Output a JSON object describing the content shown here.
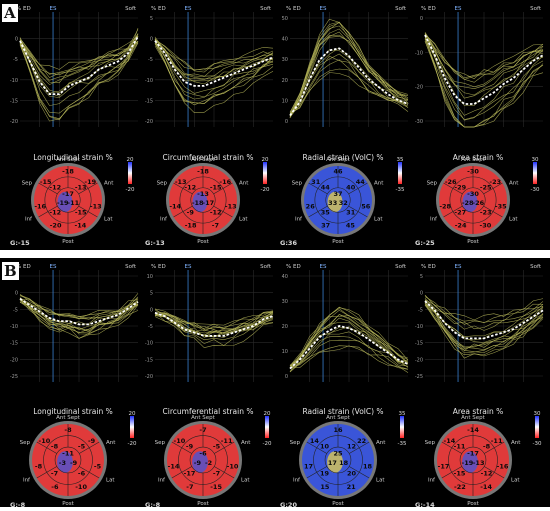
{
  "panels": [
    {
      "label": "A",
      "cols": [
        {
          "key": "long",
          "curve": {
            "ylabel": "% ED",
            "es": "ES",
            "soft": "Soft",
            "ticks": [
              "5",
              "0",
              "-5",
              "-10",
              "-15",
              "-20"
            ],
            "ylim": [
              -22,
              6
            ],
            "mean": [
              -1,
              -6,
              -11,
              -14,
              -14,
              -12,
              -11,
              -10,
              -8,
              -7,
              -6,
              -4,
              0
            ]
          },
          "bull": {
            "title": "Longitudinal strain %",
            "scale": [
              "20",
              "-20"
            ],
            "mode": "red",
            "global": "G:-15",
            "outer": [
              "-18",
              "-19",
              "-13",
              "-14",
              "-20",
              "-16",
              "-15"
            ],
            "mid": [
              "-13",
              "-15",
              "-12",
              "-12"
            ],
            "inner": [
              "-17",
              "-11",
              "-19"
            ]
          }
        },
        {
          "key": "circ",
          "curve": {
            "ylabel": "% ED",
            "es": "ES",
            "soft": "Soft",
            "ticks": [
              "5",
              "0",
              "-5",
              "-10",
              "-15",
              "-20"
            ],
            "ylim": [
              -22,
              6
            ],
            "mean": [
              -1,
              -4,
              -8,
              -11,
              -12,
              -12,
              -11,
              -10,
              -9,
              -8,
              -7,
              -6,
              -5
            ]
          },
          "bull": {
            "title": "Circumferential strain %",
            "scale": [
              "20",
              "-20"
            ],
            "mode": "red",
            "global": "G:-13",
            "outer": [
              "-18",
              "-16",
              "-13",
              "-7",
              "-18",
              "-14",
              "-13"
            ],
            "mid": [
              "-15",
              "-12",
              "-9",
              "-12"
            ],
            "inner": [
              "-13",
              "-17",
              "-18"
            ]
          }
        },
        {
          "key": "rad",
          "curve": {
            "ylabel": "% ED",
            "es": "ES",
            "soft": "Soft",
            "ticks": [
              "50",
              "40",
              "30",
              "20",
              "10",
              "0"
            ],
            "ylim": [
              -5,
              55
            ],
            "mean": [
              1,
              8,
              20,
              30,
              35,
              36,
              32,
              26,
              20,
              16,
              12,
              9,
              7
            ]
          },
          "bull": {
            "title": "Radial strain (VolC) %",
            "scale": [
              "35",
              "-35"
            ],
            "mode": "blue",
            "global": "G:36",
            "outer": [
              "46",
              "44",
              "56",
              "45",
              "37",
              "26",
              "31"
            ],
            "mid": [
              "40",
              "31",
              "35",
              "44"
            ],
            "inner": [
              "37",
              "32",
              "33"
            ]
          }
        },
        {
          "key": "area",
          "curve": {
            "ylabel": "% ED",
            "es": "ES",
            "soft": "Soft",
            "ticks": [
              "0",
              "-10",
              "-20",
              "-30"
            ],
            "ylim": [
              -35,
              5
            ],
            "mean": [
              -3,
              -10,
              -18,
              -24,
              -27,
              -27,
              -25,
              -23,
              -20,
              -18,
              -15,
              -12,
              -10
            ]
          },
          "bull": {
            "title": "Area strain %",
            "scale": [
              "30",
              "-30"
            ],
            "mode": "red",
            "global": "G:-25",
            "outer": [
              "-30",
              "-23",
              "-35",
              "-30",
              "-24",
              "-28",
              "-26"
            ],
            "mid": [
              "-25",
              "-23",
              "-27",
              "-29"
            ],
            "inner": [
              "-30",
              "-26",
              "-28"
            ]
          }
        }
      ]
    },
    {
      "label": "B",
      "cols": [
        {
          "key": "long",
          "curve": {
            "ylabel": "% ED",
            "es": "ES",
            "soft": "Soft",
            "ticks": [
              "5",
              "0",
              "-5",
              "-10",
              "-15",
              "-20",
              "-25"
            ],
            "ylim": [
              -27,
              8
            ],
            "mean": [
              -1,
              -3,
              -5,
              -7,
              -8,
              -8,
              -9,
              -9,
              -8,
              -7,
              -6,
              -4,
              -2
            ]
          },
          "bull": {
            "title": "Longitudinal strain %",
            "scale": [
              "20",
              "-20"
            ],
            "mode": "red",
            "global": "G:-8",
            "outer": [
              "-8",
              "-9",
              "-5",
              "-10",
              "-6",
              "-8",
              "-10"
            ],
            "mid": [
              "-5",
              "-6",
              "-7",
              "-8"
            ],
            "inner": [
              "-11",
              "-9",
              "-3"
            ]
          }
        },
        {
          "key": "circ",
          "curve": {
            "ylabel": "% ED",
            "es": "ES",
            "soft": "Soft",
            "ticks": [
              "10",
              "5",
              "0",
              "-5",
              "-10",
              "-15",
              "-20"
            ],
            "ylim": [
              -22,
              12
            ],
            "mean": [
              -1,
              -2,
              -4,
              -6,
              -7,
              -8,
              -8,
              -8,
              -7,
              -6,
              -5,
              -3,
              -2
            ]
          },
          "bull": {
            "title": "Circumferential strain %",
            "scale": [
              "20",
              "-20"
            ],
            "mode": "red",
            "global": "G:-8",
            "outer": [
              "-7",
              "-11",
              "-10",
              "-15",
              "-7",
              "-14",
              "-10"
            ],
            "mid": [
              "-5",
              "-7",
              "-17",
              "-9"
            ],
            "inner": [
              "-6",
              "-2",
              "-9"
            ]
          }
        },
        {
          "key": "rad",
          "curve": {
            "ylabel": "% ED",
            "es": "ES",
            "soft": "Soft",
            "ticks": [
              "40",
              "30",
              "20",
              "10",
              "0"
            ],
            "ylim": [
              -5,
              45
            ],
            "mean": [
              1,
              5,
              10,
              15,
              18,
              20,
              19,
              17,
              14,
              11,
              8,
              5,
              3
            ]
          },
          "bull": {
            "title": "Radial strain (VolC) %",
            "scale": [
              "35",
              "-35"
            ],
            "mode": "blue",
            "global": "G:20",
            "outer": [
              "16",
              "22",
              "18",
              "21",
              "15",
              "17",
              "14"
            ],
            "mid": [
              "12",
              "20",
              "19",
              "10"
            ],
            "inner": [
              "25",
              "18",
              "17"
            ]
          }
        },
        {
          "key": "area",
          "curve": {
            "ylabel": "% ED",
            "es": "ES",
            "soft": "Soft",
            "ticks": [
              "5",
              "0",
              "-5",
              "-10",
              "-15",
              "-20",
              "-25"
            ],
            "ylim": [
              -28,
              8
            ],
            "mean": [
              -2,
              -5,
              -9,
              -12,
              -14,
              -14,
              -14,
              -13,
              -12,
              -11,
              -9,
              -7,
              -5
            ]
          },
          "bull": {
            "title": "Area strain %",
            "scale": [
              "30",
              "-30"
            ],
            "mode": "red",
            "global": "G:-14",
            "outer": [
              "-14",
              "-11",
              "-16",
              "-14",
              "-22",
              "-17",
              "-14"
            ],
            "mid": [
              "-8",
              "-12",
              "-15",
              "-11"
            ],
            "inner": [
              "-17",
              "-13",
              "-19"
            ]
          }
        }
      ]
    }
  ],
  "segments": {
    "top": "Ant Sept",
    "ant": "Ant",
    "lat": "Lat",
    "post": "Post",
    "inf": "Inf",
    "sep": "Sep"
  },
  "colors": {
    "curve_yellow": "#b8b85a",
    "mean_white": "#ffffff",
    "es_line": "#3a7fd0",
    "red_map": "#e03a3a",
    "blue_map": "#3a55d8"
  }
}
